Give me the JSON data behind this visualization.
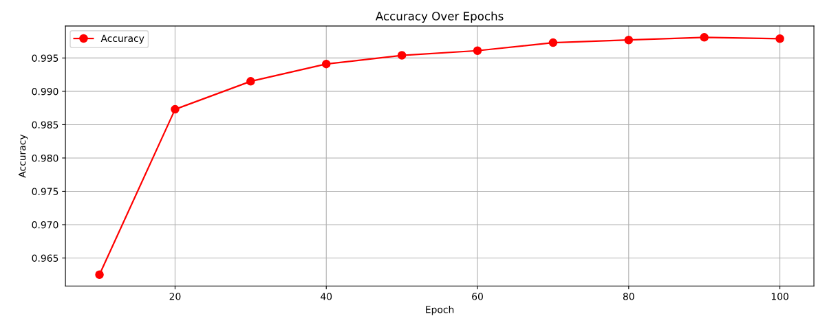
{
  "chart_data": {
    "type": "line",
    "title": "Accuracy Over Epochs",
    "xlabel": "Epoch",
    "ylabel": "Accuracy",
    "x": [
      10,
      20,
      30,
      40,
      50,
      60,
      70,
      80,
      90,
      100
    ],
    "series": [
      {
        "name": "Accuracy",
        "color": "#ff0000",
        "values": [
          0.9625,
          0.9873,
          0.9915,
          0.9941,
          0.9954,
          0.9961,
          0.9973,
          0.9977,
          0.9981,
          0.9979
        ]
      }
    ],
    "xlim": [
      5.5,
      104.5
    ],
    "ylim": [
      0.9608,
      0.9998
    ],
    "xticks": [
      20,
      40,
      60,
      80,
      100
    ],
    "yticks": [
      0.965,
      {
        "value": 0.97,
        "label": "0.970"
      },
      0.975,
      {
        "value": 0.98,
        "label": "0.980"
      },
      0.985,
      {
        "value": 0.99,
        "label": "0.990"
      },
      0.995
    ],
    "grid": true,
    "legend": "top left",
    "marker": "circle",
    "line_style": "solid"
  }
}
